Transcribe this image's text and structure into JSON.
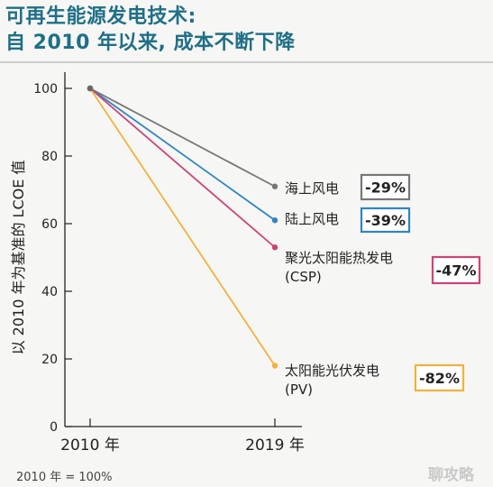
{
  "header": {
    "title_line1": "可再生能源发电技术:",
    "title_line2": "自 2010 年以来, 成本不断下降"
  },
  "chart_data": {
    "type": "line",
    "title": "可再生能源发电技术: 自 2010 年以来, 成本不断下降",
    "ylabel": "以 2010 年为基准的 LCOE 值",
    "xlabel": "",
    "ylim": [
      0,
      100
    ],
    "yticks": [
      0,
      20,
      40,
      60,
      80,
      100
    ],
    "categories": [
      "2010 年",
      "2019 年"
    ],
    "series": [
      {
        "name": "海上风电",
        "label_lines": [
          "海上风电"
        ],
        "values": [
          100,
          71
        ],
        "change": "-29%",
        "color": "#777777"
      },
      {
        "name": "陆上风电",
        "label_lines": [
          "陆上风电"
        ],
        "values": [
          100,
          61
        ],
        "change": "-39%",
        "color": "#2e86c1"
      },
      {
        "name": "聚光太阳能热发电 (CSP)",
        "label_lines": [
          "聚光太阳能热发电",
          "(CSP)"
        ],
        "values": [
          100,
          53
        ],
        "change": "-47%",
        "color": "#cc4477"
      },
      {
        "name": "太阳能光伏发电 (PV)",
        "label_lines": [
          "太阳能光伏发电",
          "(PV)"
        ],
        "values": [
          100,
          18
        ],
        "change": "-82%",
        "color": "#f2b23c"
      }
    ],
    "grid": false,
    "legend": "right"
  },
  "footnote": "2010 年 = 100%",
  "watermark": "聊攻略"
}
